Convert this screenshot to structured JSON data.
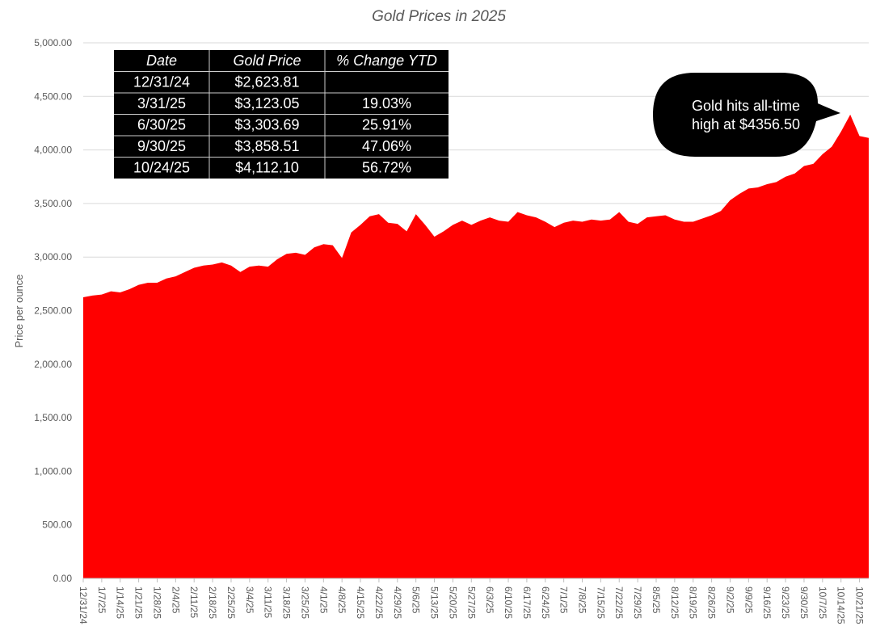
{
  "chart_data": {
    "type": "area",
    "title": "Gold Prices in 2025",
    "y_label": "Price per ounce",
    "color": "#ff0000",
    "grid": true,
    "categories": [
      "12/31/24",
      null,
      "1/7/25",
      null,
      "1/14/25",
      null,
      "1/21/25",
      null,
      "1/28/25",
      null,
      "2/4/25",
      null,
      "2/11/25",
      null,
      "2/18/25",
      null,
      "2/25/25",
      null,
      "3/4/25",
      null,
      "3/11/25",
      null,
      "3/18/25",
      null,
      "3/25/25",
      null,
      "4/1/25",
      null,
      "4/8/25",
      null,
      "4/15/25",
      null,
      "4/22/25",
      null,
      "4/29/25",
      null,
      "5/6/25",
      null,
      "5/13/25",
      null,
      "5/20/25",
      null,
      "5/27/25",
      null,
      "6/3/25",
      null,
      "6/10/25",
      null,
      "6/17/25",
      null,
      "6/24/25",
      null,
      "7/1/25",
      null,
      "7/8/25",
      null,
      "7/15/25",
      null,
      "7/22/25",
      null,
      "7/29/25",
      null,
      "8/5/25",
      null,
      "8/12/25",
      null,
      "8/19/25",
      null,
      "8/26/25",
      null,
      "9/2/25",
      null,
      "9/9/25",
      null,
      "9/16/25",
      null,
      "9/23/25",
      null,
      "9/30/25",
      null,
      "10/7/25",
      null,
      "10/14/25",
      null,
      "10/21/25",
      null
    ],
    "values": [
      2624,
      2640,
      2650,
      2680,
      2670,
      2700,
      2740,
      2760,
      2760,
      2800,
      2820,
      2860,
      2900,
      2920,
      2930,
      2950,
      2920,
      2860,
      2910,
      2920,
      2910,
      2980,
      3030,
      3040,
      3020,
      3090,
      3120,
      3110,
      2990,
      3230,
      3300,
      3380,
      3400,
      3320,
      3310,
      3240,
      3400,
      3300,
      3190,
      3240,
      3300,
      3340,
      3300,
      3340,
      3370,
      3340,
      3330,
      3420,
      3390,
      3370,
      3330,
      3280,
      3320,
      3340,
      3330,
      3350,
      3340,
      3350,
      3420,
      3330,
      3310,
      3370,
      3380,
      3390,
      3350,
      3330,
      3330,
      3360,
      3390,
      3430,
      3530,
      3590,
      3640,
      3650,
      3680,
      3700,
      3750,
      3780,
      3850,
      3870,
      3960,
      4030,
      4170,
      4330,
      4130,
      4112
    ],
    "ylim": [
      0,
      5000
    ],
    "yticks": [
      {
        "value": 0,
        "label": "0.00"
      },
      {
        "value": 500,
        "label": "500.00"
      },
      {
        "value": 1000,
        "label": "1,000.00"
      },
      {
        "value": 1500,
        "label": "1,500.00"
      },
      {
        "value": 2000,
        "label": "2,000.00"
      },
      {
        "value": 2500,
        "label": "2,500.00"
      },
      {
        "value": 3000,
        "label": "3,000.00"
      },
      {
        "value": 3500,
        "label": "3,500.00"
      },
      {
        "value": 4000,
        "label": "4,000.00"
      },
      {
        "value": 4500,
        "label": "4,500.00"
      },
      {
        "value": 5000,
        "label": "5,000.00"
      }
    ],
    "annotation": {
      "lines": [
        "Gold hits all-time",
        "high at $4356.50"
      ]
    },
    "table": {
      "columns": [
        "Date",
        "Gold Price",
        "% Change YTD"
      ],
      "rows": [
        [
          "12/31/24",
          "$2,623.81",
          null
        ],
        [
          "3/31/25",
          "$3,123.05",
          "19.03%"
        ],
        [
          "6/30/25",
          "$3,303.69",
          "25.91%"
        ],
        [
          "9/30/25",
          "$3,858.51",
          "47.06%"
        ],
        [
          "10/24/25",
          "$4,112.10",
          "56.72%"
        ]
      ]
    }
  }
}
